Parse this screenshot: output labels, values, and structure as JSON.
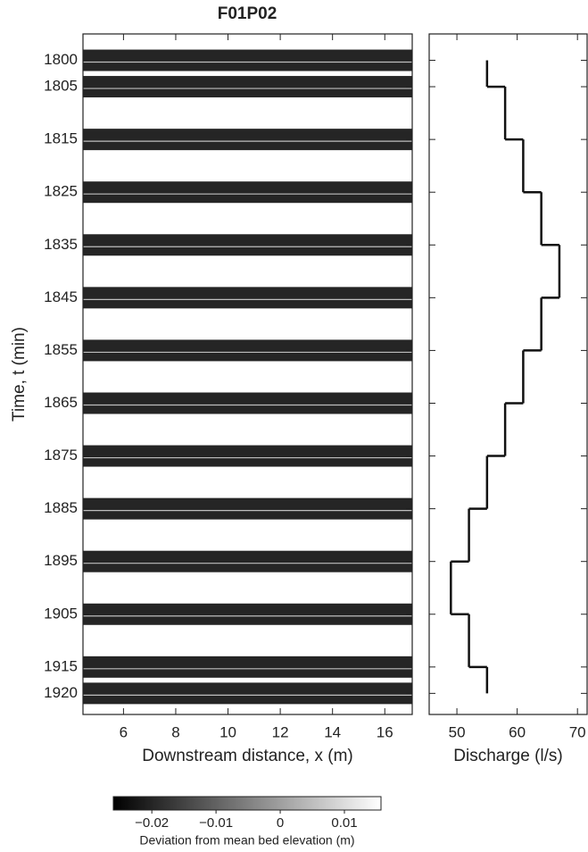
{
  "chart_data": [
    {
      "type": "strips",
      "title": "F01P02",
      "xlabel": "Downstream distance, x (m)",
      "ylabel": "Time, t (min)",
      "xlim": [
        4.45,
        17.05
      ],
      "xticks": [
        6,
        8,
        10,
        12,
        14,
        16
      ],
      "ylim": [
        1795,
        1924
      ],
      "yticks": [
        1800,
        1805,
        1815,
        1825,
        1835,
        1845,
        1855,
        1865,
        1875,
        1885,
        1895,
        1905,
        1915,
        1920
      ]
    },
    {
      "type": "step",
      "xlabel": "Discharge (l/s)",
      "xlim": [
        45.4,
        71.6
      ],
      "xticks": [
        50,
        60,
        70
      ],
      "ylim": [
        1795,
        1924
      ],
      "yticks": [
        1800,
        1805,
        1815,
        1825,
        1835,
        1845,
        1855,
        1865,
        1875,
        1885,
        1895,
        1905,
        1915,
        1920
      ],
      "time_edges": [
        1800,
        1805,
        1815,
        1825,
        1835,
        1845,
        1855,
        1865,
        1875,
        1885,
        1895,
        1905,
        1915,
        1920
      ],
      "values": [
        55,
        58,
        61,
        64,
        67,
        64,
        61,
        58,
        55,
        52,
        49,
        52,
        55
      ],
      "color": "#111111"
    },
    {
      "type": "colorbar",
      "label": "Deviation from mean bed elevation (m)",
      "clim": [
        -0.026,
        0.0157
      ],
      "cticks": [
        {
          "value": -0.02,
          "label": "−0.02"
        },
        {
          "value": -0.01,
          "label": "−0.01"
        },
        0,
        0.01
      ]
    }
  ]
}
